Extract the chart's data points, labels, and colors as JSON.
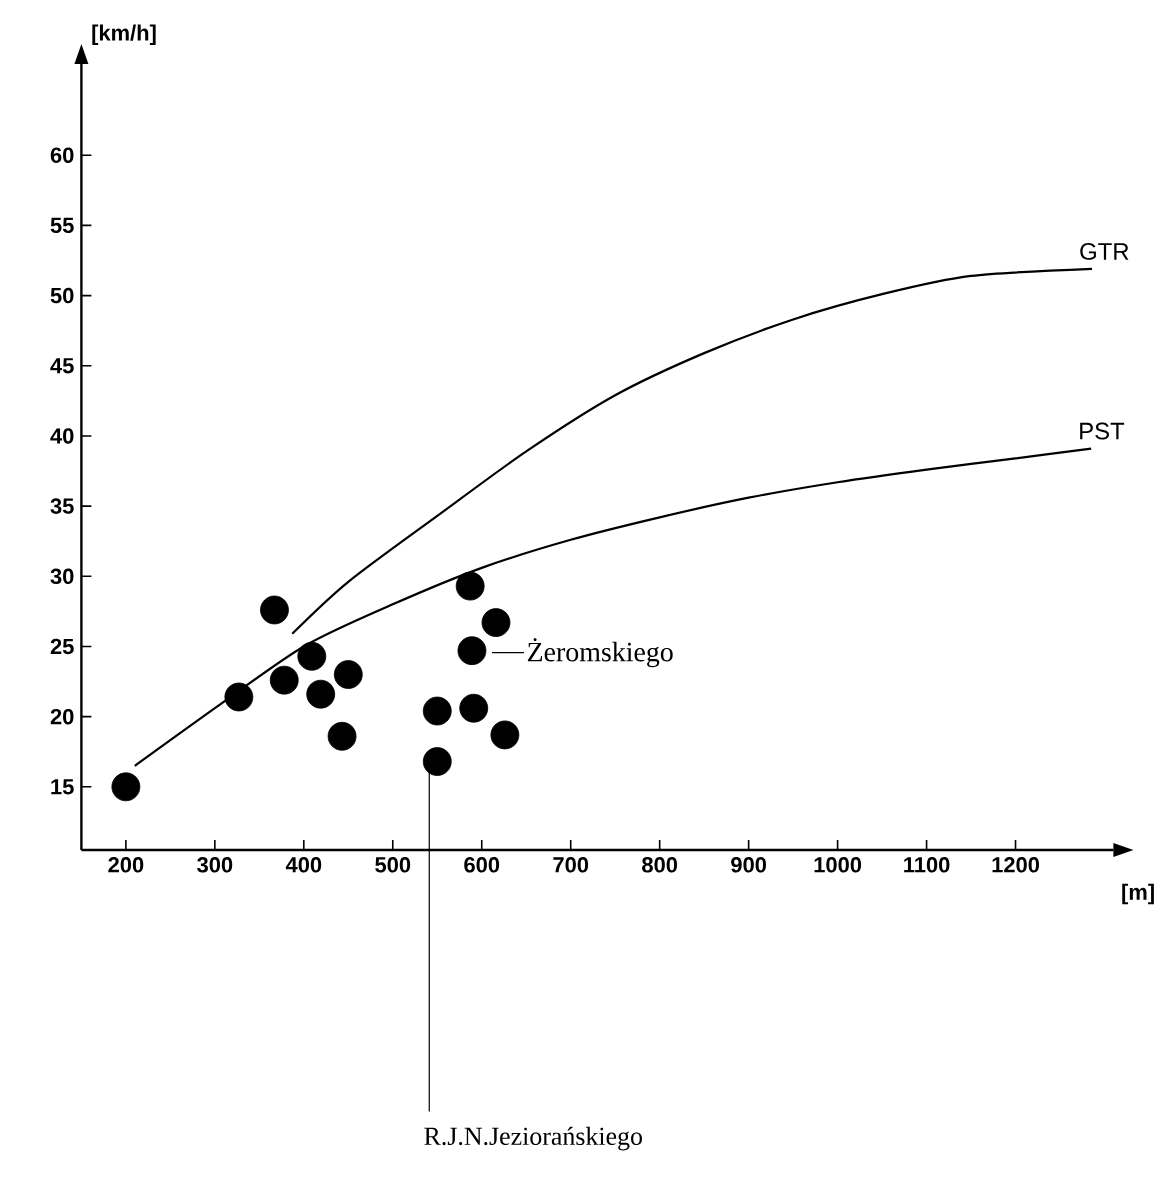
{
  "chart_data": {
    "type": "scatter",
    "xlabel": "[m]",
    "ylabel": "[km/h]",
    "xlim": [
      150,
      1310
    ],
    "ylim": [
      10.5,
      66.5
    ],
    "xticks": [
      200,
      300,
      400,
      500,
      600,
      700,
      800,
      900,
      1000,
      1100,
      1200
    ],
    "yticks": [
      15,
      20,
      25,
      30,
      35,
      40,
      45,
      50,
      55,
      60
    ],
    "grid": false,
    "series": [
      {
        "marker": "circle",
        "color": "#000000",
        "x": [
          200,
          327,
          367,
          378,
          409,
          419,
          450,
          443,
          550,
          550,
          587,
          616,
          589,
          591,
          626
        ],
        "values": [
          15,
          21.4,
          27.6,
          22.6,
          24.3,
          21.6,
          23.0,
          18.6,
          20.4,
          16.8,
          29.3,
          26.7,
          24.7,
          20.6,
          18.7
        ]
      },
      {
        "type": "line",
        "name": "GTR",
        "marker": "none",
        "color": "#000000",
        "x": [
          387,
          450,
          550,
          650,
          750,
          850,
          950,
          1050,
          1150,
          1286
        ],
        "values": [
          25.9,
          29.6,
          34.3,
          38.9,
          42.9,
          45.9,
          48.3,
          50.1,
          51.4,
          51.9
        ]
      },
      {
        "type": "line",
        "name": "PST",
        "marker": "none",
        "color": "#000000",
        "x": [
          210,
          300,
          400,
          500,
          600,
          700,
          800,
          900,
          1000,
          1100,
          1200,
          1285
        ],
        "values": [
          16.5,
          20.6,
          25.0,
          28.0,
          30.6,
          32.6,
          34.2,
          35.6,
          36.7,
          37.6,
          38.4,
          39.1
        ]
      }
    ],
    "annotations": [
      {
        "text": "Żeromskiego",
        "x": 589,
        "y": 24.7
      },
      {
        "text": "R.J.N.Jeziorańskiego",
        "x": 550,
        "y": 16.8
      }
    ]
  }
}
